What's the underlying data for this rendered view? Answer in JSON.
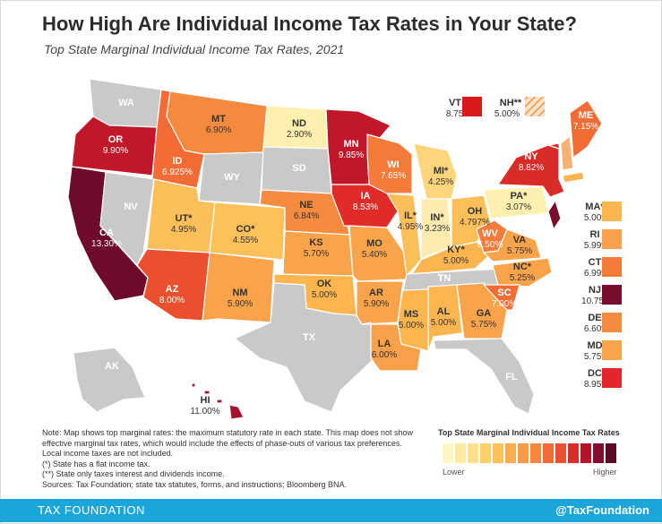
{
  "title": "How High Are Individual Income Tax Rates in Your State?",
  "subtitle": "Top State Marginal Individual Income Tax Rates, 2021",
  "states": {
    "WA": {
      "abbr": "WA",
      "rate": ""
    },
    "OR": {
      "abbr": "OR",
      "rate": "9.90%"
    },
    "CA": {
      "abbr": "CA",
      "rate": "13.30%"
    },
    "NV": {
      "abbr": "NV",
      "rate": ""
    },
    "ID": {
      "abbr": "ID",
      "rate": "6.925%"
    },
    "MT": {
      "abbr": "MT",
      "rate": "6.90%"
    },
    "WY": {
      "abbr": "WY",
      "rate": ""
    },
    "UT": {
      "abbr": "UT*",
      "rate": "4.95%"
    },
    "AZ": {
      "abbr": "AZ",
      "rate": "8.00%"
    },
    "CO": {
      "abbr": "CO*",
      "rate": "4.55%"
    },
    "NM": {
      "abbr": "NM",
      "rate": "5.90%"
    },
    "ND": {
      "abbr": "ND",
      "rate": "2.90%"
    },
    "SD": {
      "abbr": "SD",
      "rate": ""
    },
    "NE": {
      "abbr": "NE",
      "rate": "6.84%"
    },
    "KS": {
      "abbr": "KS",
      "rate": "5.70%"
    },
    "OK": {
      "abbr": "OK",
      "rate": "5.00%"
    },
    "TX": {
      "abbr": "TX",
      "rate": ""
    },
    "MN": {
      "abbr": "MN",
      "rate": "9.85%"
    },
    "IA": {
      "abbr": "IA",
      "rate": "8.53%"
    },
    "MO": {
      "abbr": "MO",
      "rate": "5.40%"
    },
    "AR": {
      "abbr": "AR",
      "rate": "5.90%"
    },
    "LA": {
      "abbr": "LA",
      "rate": "6.00%"
    },
    "WI": {
      "abbr": "WI",
      "rate": "7.65%"
    },
    "IL": {
      "abbr": "IL*",
      "rate": "4.95%"
    },
    "MS": {
      "abbr": "MS",
      "rate": "5.00%"
    },
    "MI": {
      "abbr": "MI*",
      "rate": "4.25%"
    },
    "IN": {
      "abbr": "IN*",
      "rate": "3.23%"
    },
    "KY": {
      "abbr": "KY*",
      "rate": "5.00%"
    },
    "TN": {
      "abbr": "TN",
      "rate": ""
    },
    "AL": {
      "abbr": "AL",
      "rate": "5.00%"
    },
    "GA": {
      "abbr": "GA",
      "rate": "5.75%"
    },
    "FL": {
      "abbr": "FL",
      "rate": ""
    },
    "OH": {
      "abbr": "OH",
      "rate": "4.797%"
    },
    "WV": {
      "abbr": "WV",
      "rate": "6.50%"
    },
    "VA": {
      "abbr": "VA",
      "rate": "5.75%"
    },
    "NC": {
      "abbr": "NC*",
      "rate": "5.25%"
    },
    "SC": {
      "abbr": "SC",
      "rate": "7.00%"
    },
    "PA": {
      "abbr": "PA*",
      "rate": "3.07%"
    },
    "NY": {
      "abbr": "NY",
      "rate": "8.82%"
    },
    "ME": {
      "abbr": "ME",
      "rate": "7.15%"
    },
    "AK": {
      "abbr": "AK",
      "rate": ""
    },
    "HI": {
      "abbr": "HI",
      "rate": "11.00%"
    }
  },
  "callouts": [
    {
      "abbr": "VT",
      "rate": "8.75%",
      "color": "#d7191c"
    },
    {
      "abbr": "NH**",
      "rate": "5.00%",
      "color": "#f5b274"
    }
  ],
  "side_boxes": [
    {
      "abbr": "MA*",
      "rate": "5.00%",
      "color": "#fdb64f"
    },
    {
      "abbr": "RI",
      "rate": "5.99%",
      "color": "#f8a04a"
    },
    {
      "abbr": "CT",
      "rate": "6.99%",
      "color": "#f47b3a"
    },
    {
      "abbr": "NJ",
      "rate": "10.75%",
      "color": "#7a0d2e"
    },
    {
      "abbr": "DE",
      "rate": "6.60%",
      "color": "#f58b3f"
    },
    {
      "abbr": "MD",
      "rate": "5.75%",
      "color": "#f8a54c"
    },
    {
      "abbr": "DC",
      "rate": "8.95%",
      "color": "#e1272d"
    }
  ],
  "notes": [
    "Note: Map shows top marginal rates: the maximum statutory rate in each state. This map does not show effective marginal tax rates, which would include the effects of phase-outs of various tax preferences. Local income taxes are not included.",
    "(*) State has a flat income tax.",
    "(**) State only taxes interest and dividends income.",
    "Sources: Tax Foundation; state tax statutes, forms, and instructions; Bloomberg BNA."
  ],
  "legend": {
    "title": "Top State Marginal Individual Income Tax Rates",
    "low": "Lower",
    "high": "Higher",
    "colors": [
      "#fff7c2",
      "#ffeb9c",
      "#fee08b",
      "#fdd06e",
      "#fdc05a",
      "#fdae4c",
      "#fb9a44",
      "#f8853d",
      "#f36c35",
      "#ea4f2e",
      "#d92b28",
      "#b3162a",
      "#870d2c",
      "#5e0a24"
    ]
  },
  "footer": {
    "brand": "TAX FOUNDATION",
    "handle": "@TaxFoundation"
  },
  "colors": {
    "no_tax": "#c9c9c9",
    "accent": "#1aa6d9"
  }
}
